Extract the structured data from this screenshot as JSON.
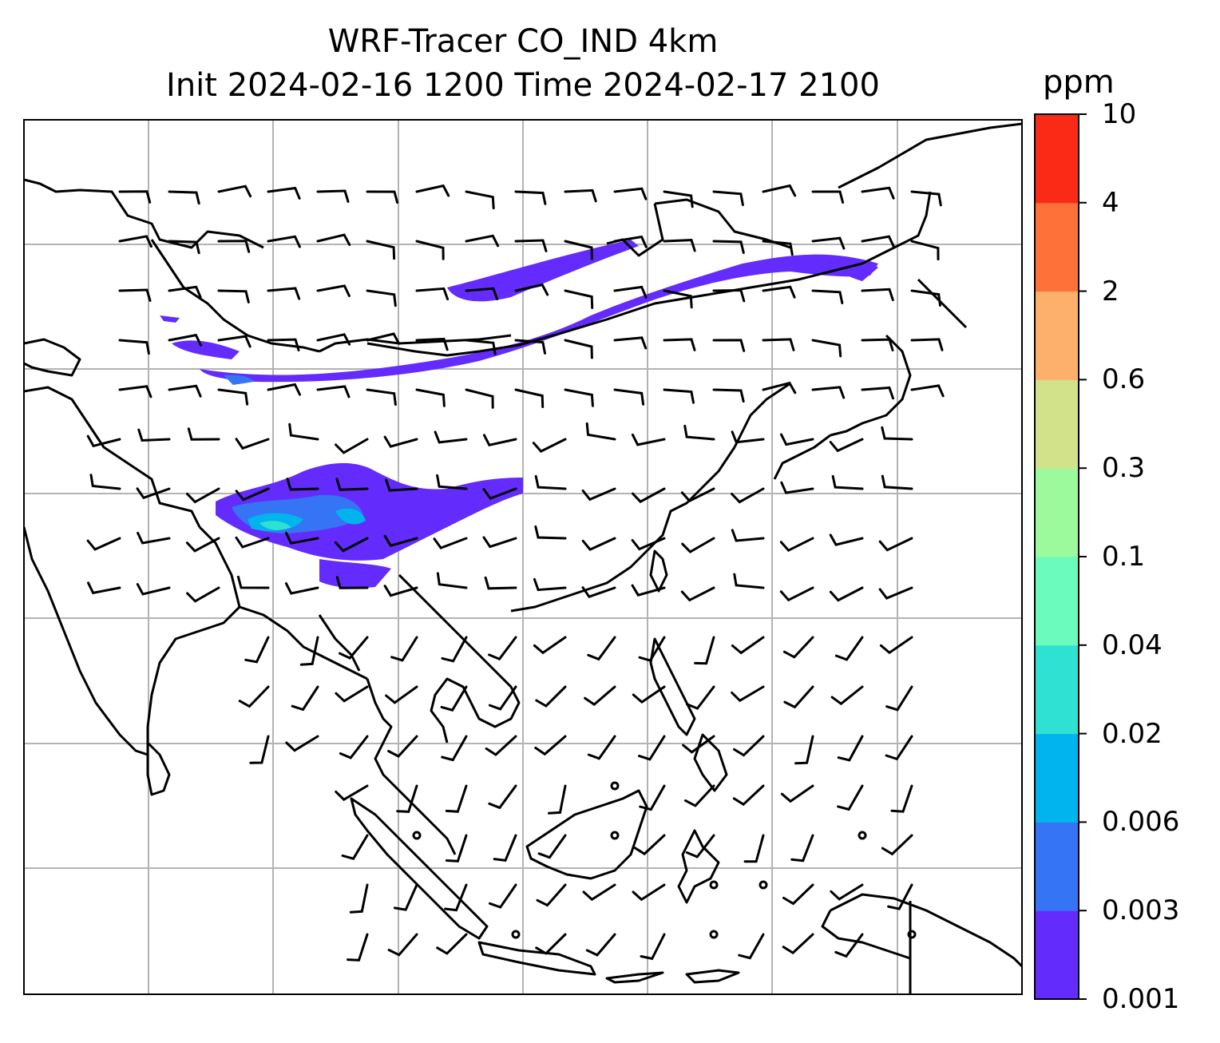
{
  "title_line1": "WRF-Tracer CO_IND 4km",
  "title_line2": "Init 2024-02-16 1200 Time 2024-02-17 2100",
  "colorbar": {
    "unit": "ppm",
    "levels": [
      "0.001",
      "0.003",
      "0.006",
      "0.02",
      "0.04",
      "0.1",
      "0.3",
      "0.6",
      "2",
      "4",
      "10"
    ],
    "colors": [
      "#632cfc",
      "#3574f4",
      "#02b4ee",
      "#2fe1d2",
      "#6bfbbd",
      "#9cf99c",
      "#d1e28a",
      "#fdb06b",
      "#fe7139",
      "#fb2a17"
    ]
  },
  "map": {
    "gridlines": true,
    "gridline_color": "#b3b3b3",
    "coastline_color": "#000000",
    "plume_color": "#632cfc",
    "plume_core_colors": [
      "#3574f4",
      "#02b4ee",
      "#2fe1d2"
    ],
    "wind_barbs": true
  }
}
